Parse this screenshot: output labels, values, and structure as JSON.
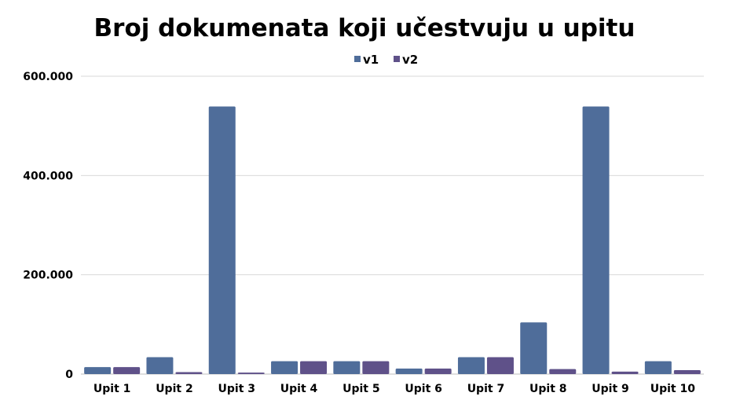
{
  "chart_data": {
    "type": "bar",
    "title": "Broj dokumenata koji učestvuju u upitu",
    "categories": [
      "Upit 1",
      "Upit 2",
      "Upit 3",
      "Upit 4",
      "Upit 5",
      "Upit 6",
      "Upit 7",
      "Upit 8",
      "Upit 9",
      "Upit 10"
    ],
    "series": [
      {
        "name": "v1",
        "color": "#4f6d9a",
        "values": [
          14000,
          34000,
          539000,
          26000,
          26000,
          11000,
          34000,
          104000,
          539000,
          26000
        ]
      },
      {
        "name": "v2",
        "color": "#5f5189",
        "values": [
          14000,
          4000,
          3000,
          26000,
          26000,
          11000,
          34000,
          10000,
          5000,
          8000
        ]
      }
    ],
    "y_ticks": [
      {
        "value": 0,
        "label": "0"
      },
      {
        "value": 200000,
        "label": "200.000"
      },
      {
        "value": 400000,
        "label": "400.000"
      },
      {
        "value": 600000,
        "label": "600.000"
      }
    ],
    "ylim": [
      0,
      600000
    ],
    "xlabel": "",
    "ylabel": "",
    "grid": true,
    "legend_position": "top-center"
  }
}
